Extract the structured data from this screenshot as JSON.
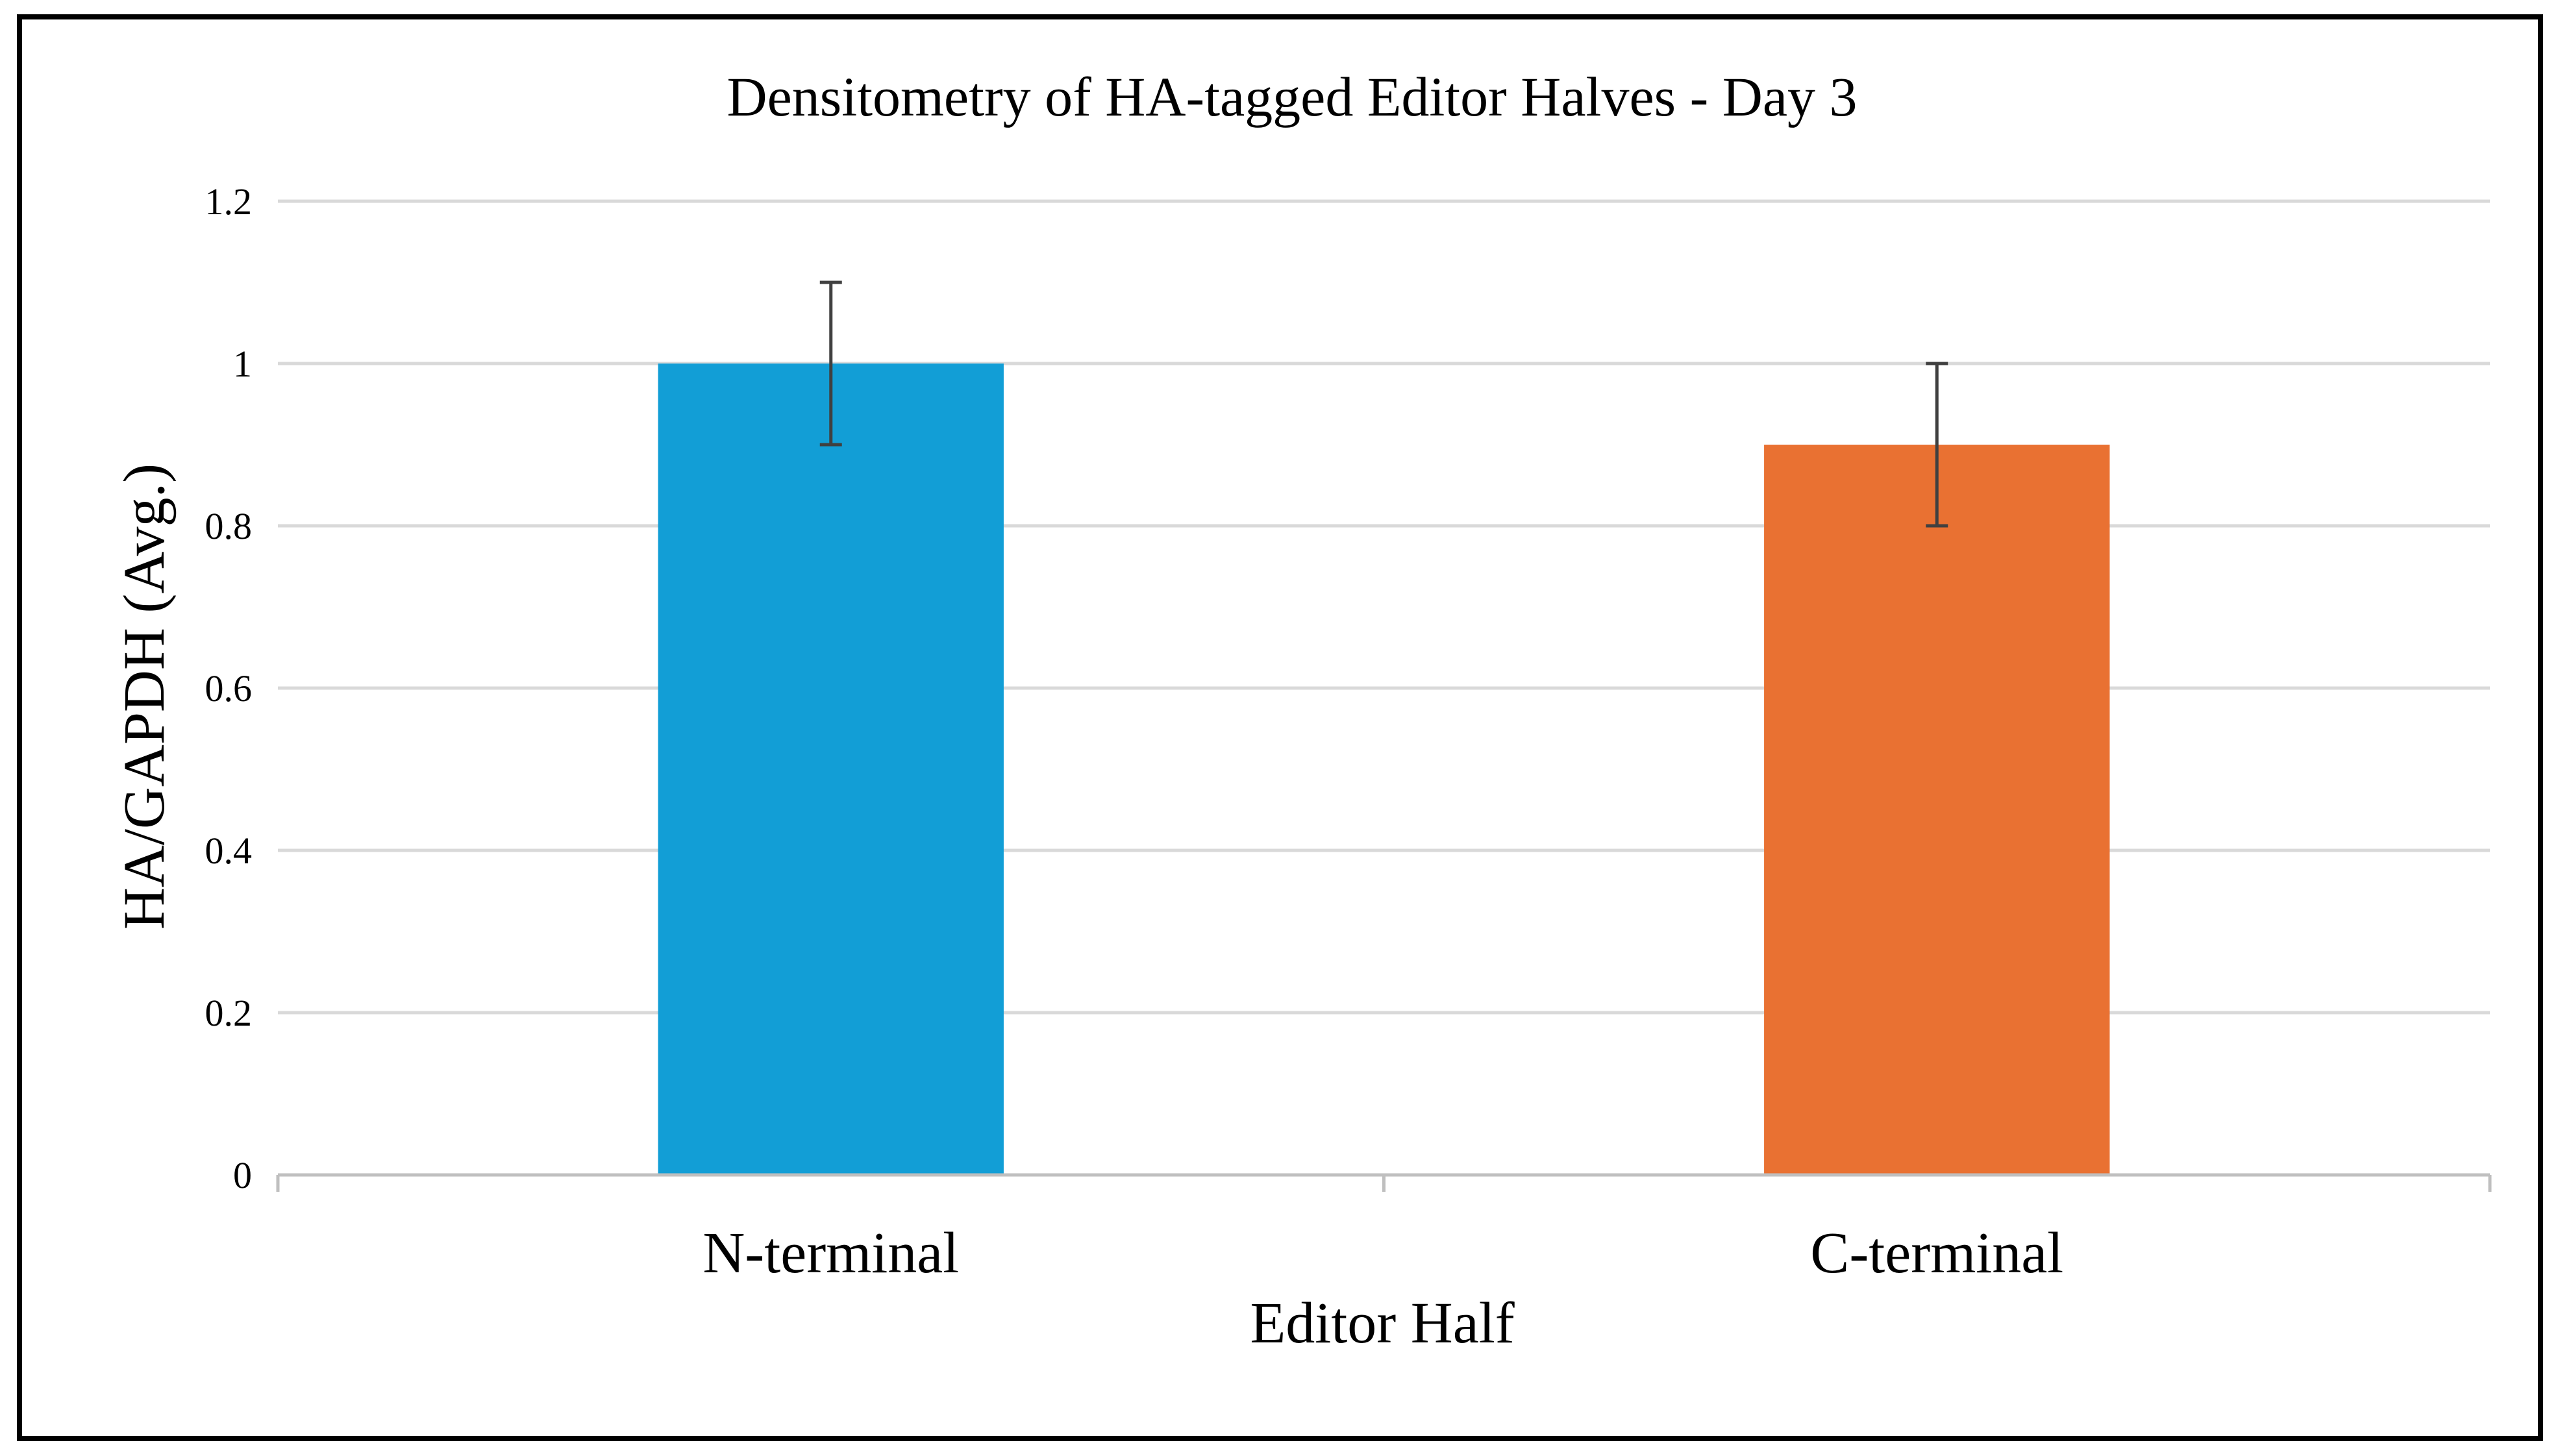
{
  "chart_data": {
    "type": "bar",
    "title": "Densitometry of HA-tagged Editor Halves - Day 3",
    "xlabel": "Editor Half",
    "ylabel": "HA/GAPDH (Avg.)",
    "categories": [
      "N-terminal",
      "C-terminal"
    ],
    "values": [
      1.0,
      0.9
    ],
    "errors": [
      0.1,
      0.1
    ],
    "colors": [
      "#129ed6",
      "#e97132"
    ],
    "ylim": [
      0,
      1.2
    ],
    "yticks": [
      {
        "value": 0,
        "label": "0"
      },
      {
        "value": 0.2,
        "label": "0.2"
      },
      {
        "value": 0.4,
        "label": "0.4"
      },
      {
        "value": 0.6,
        "label": "0.6"
      },
      {
        "value": 0.8,
        "label": "0.8"
      },
      {
        "value": 1.0,
        "label": "1"
      },
      {
        "value": 1.2,
        "label": "1.2"
      }
    ],
    "grid": true,
    "legend": "none"
  }
}
